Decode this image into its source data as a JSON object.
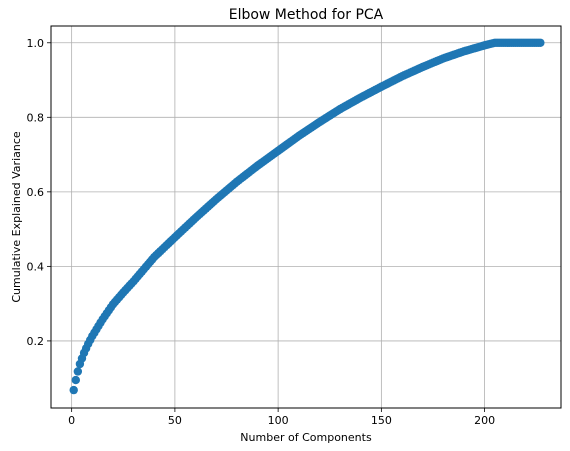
{
  "chart_data": {
    "type": "scatter",
    "title": "Elbow Method for PCA",
    "xlabel": "Number of Components",
    "ylabel": "Cumulative Explained Variance",
    "xlim": [
      -10,
      237
    ],
    "ylim": [
      0.02,
      1.045
    ],
    "xticks": [
      0,
      50,
      100,
      150,
      200
    ],
    "yticks": [
      0.2,
      0.4,
      0.6,
      0.8,
      1.0
    ],
    "xtick_labels": [
      "0",
      "50",
      "100",
      "150",
      "200"
    ],
    "ytick_labels": [
      "0.2",
      "0.4",
      "0.6",
      "0.8",
      "1.0"
    ],
    "grid": true,
    "marker": "circle",
    "series": [
      {
        "color": "#1f77b4",
        "anchor_points": [
          [
            1,
            0.068
          ],
          [
            2,
            0.095
          ],
          [
            3,
            0.118
          ],
          [
            4,
            0.138
          ],
          [
            5,
            0.153
          ],
          [
            6,
            0.168
          ],
          [
            8,
            0.192
          ],
          [
            10,
            0.213
          ],
          [
            15,
            0.258
          ],
          [
            20,
            0.298
          ],
          [
            25,
            0.33
          ],
          [
            30,
            0.36
          ],
          [
            40,
            0.425
          ],
          [
            50,
            0.478
          ],
          [
            60,
            0.53
          ],
          [
            70,
            0.58
          ],
          [
            80,
            0.627
          ],
          [
            90,
            0.67
          ],
          [
            100,
            0.71
          ],
          [
            110,
            0.75
          ],
          [
            120,
            0.787
          ],
          [
            130,
            0.822
          ],
          [
            140,
            0.853
          ],
          [
            150,
            0.882
          ],
          [
            160,
            0.91
          ],
          [
            170,
            0.935
          ],
          [
            180,
            0.958
          ],
          [
            190,
            0.977
          ],
          [
            200,
            0.993
          ],
          [
            205,
            1.0
          ],
          [
            227,
            1.0
          ]
        ],
        "n_points": 227
      }
    ]
  }
}
